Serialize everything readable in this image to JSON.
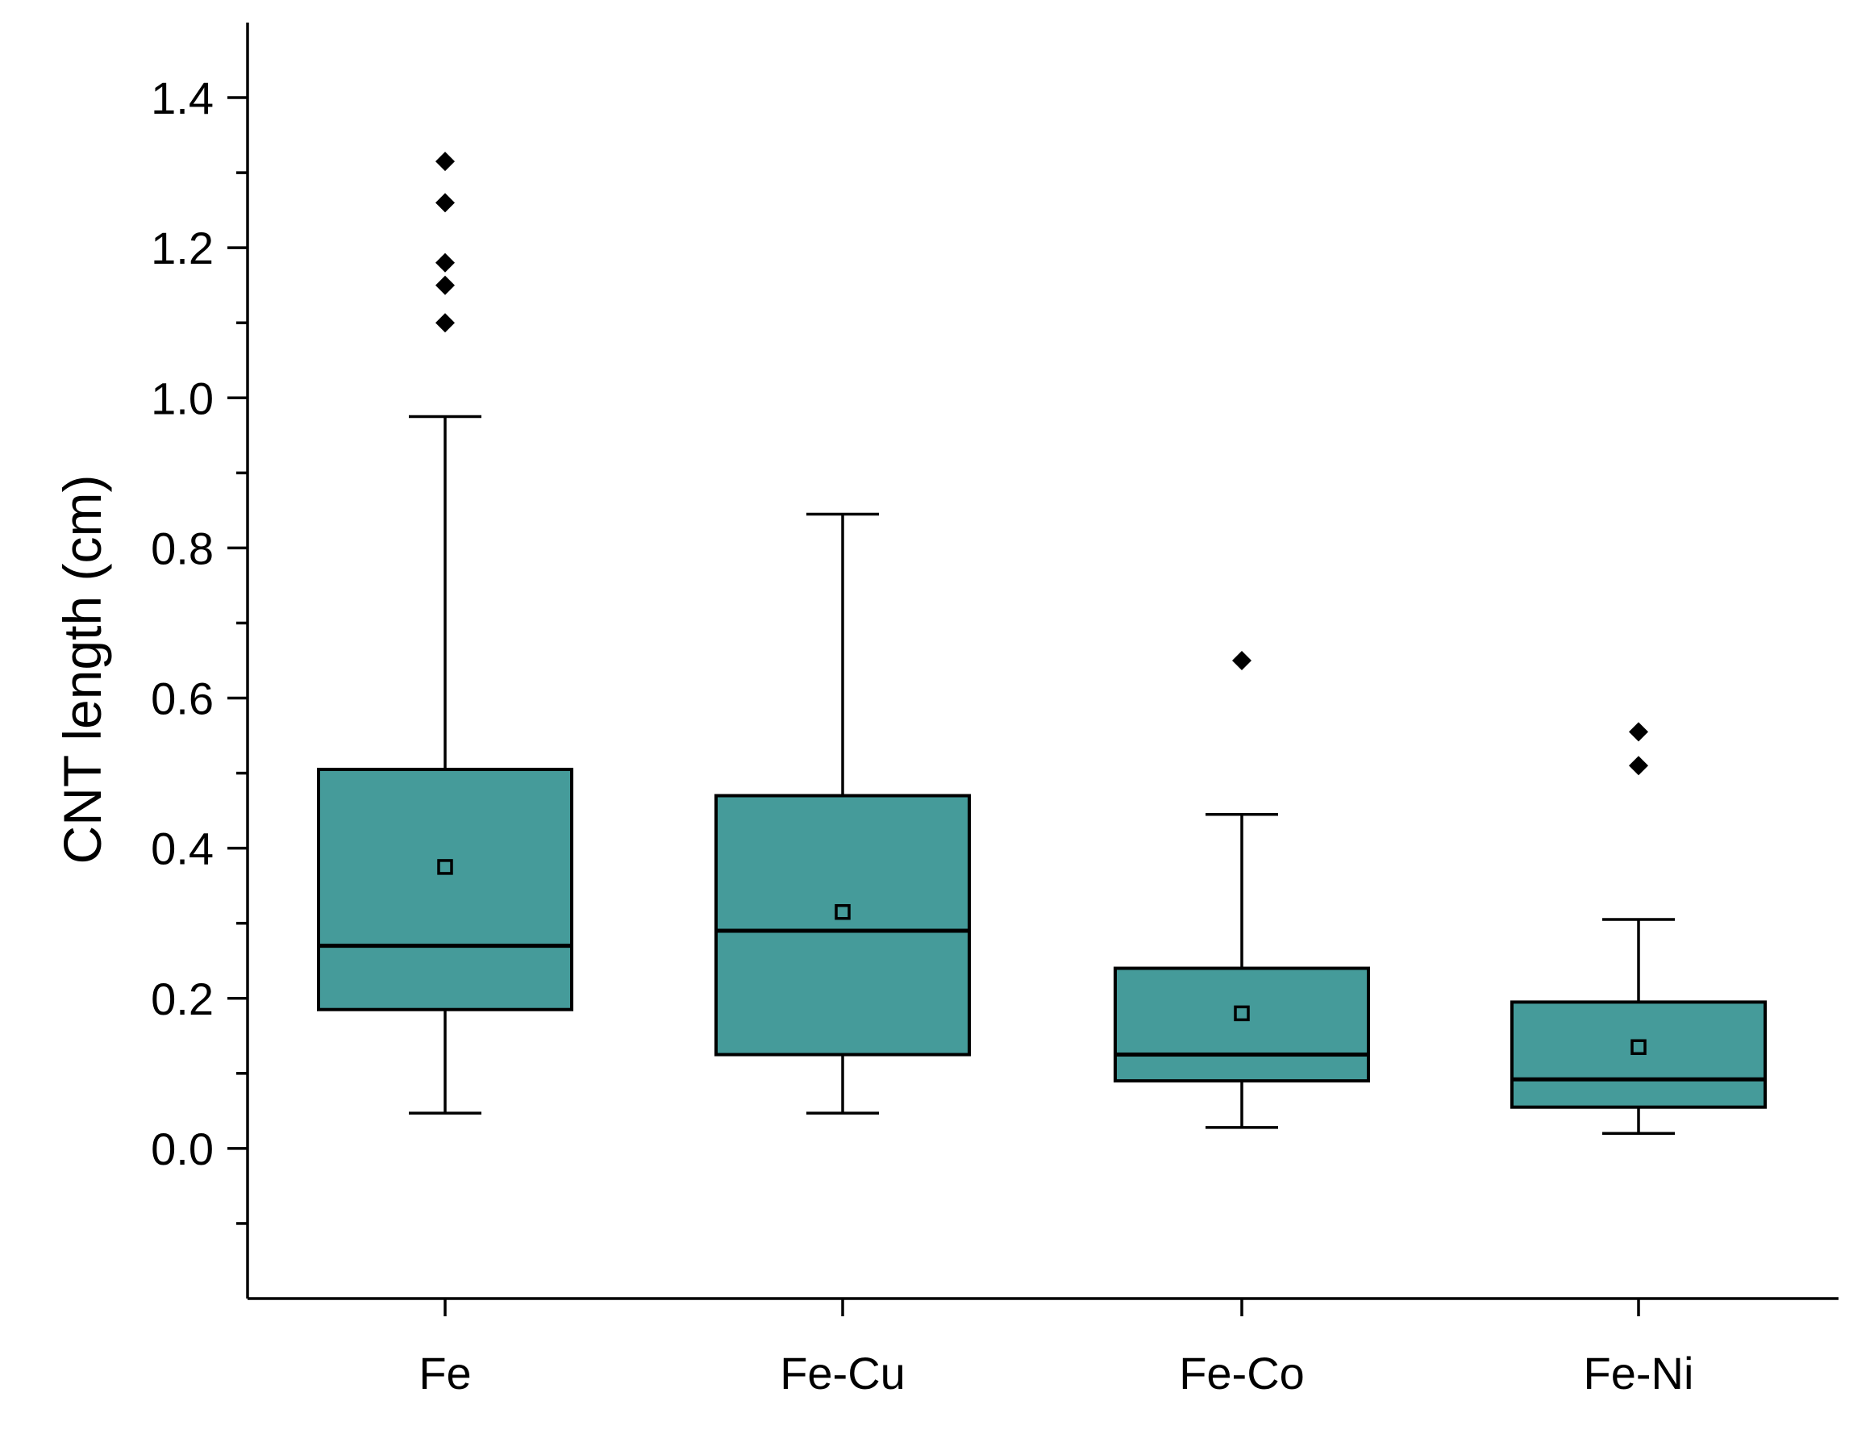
{
  "chart_data": {
    "type": "box",
    "title": "",
    "xlabel": "",
    "ylabel": "CNT length (cm)",
    "ylim": [
      -0.2,
      1.5
    ],
    "yticks": [
      "0.0",
      "0.2",
      "0.4",
      "0.6",
      "0.8",
      "1.0",
      "1.2",
      "1.4"
    ],
    "ytick_values": [
      0.0,
      0.2,
      0.4,
      0.6,
      0.8,
      1.0,
      1.2,
      1.4
    ],
    "categories": [
      "Fe",
      "Fe-Cu",
      "Fe-Co",
      "Fe-Ni"
    ],
    "box_color": "#459b9a",
    "grid": false,
    "series": [
      {
        "name": "Fe",
        "whisker_low": 0.047,
        "q1": 0.185,
        "median": 0.27,
        "q3": 0.505,
        "whisker_high": 0.975,
        "mean": 0.375,
        "outliers": [
          1.1,
          1.15,
          1.18,
          1.26,
          1.315
        ]
      },
      {
        "name": "Fe-Cu",
        "whisker_low": 0.047,
        "q1": 0.125,
        "median": 0.29,
        "q3": 0.47,
        "whisker_high": 0.845,
        "mean": 0.315,
        "outliers": []
      },
      {
        "name": "Fe-Co",
        "whisker_low": 0.028,
        "q1": 0.09,
        "median": 0.125,
        "q3": 0.24,
        "whisker_high": 0.445,
        "mean": 0.18,
        "outliers": [
          0.65
        ]
      },
      {
        "name": "Fe-Ni",
        "whisker_low": 0.02,
        "q1": 0.055,
        "median": 0.092,
        "q3": 0.195,
        "whisker_high": 0.305,
        "mean": 0.135,
        "outliers": [
          0.51,
          0.555
        ]
      }
    ]
  }
}
